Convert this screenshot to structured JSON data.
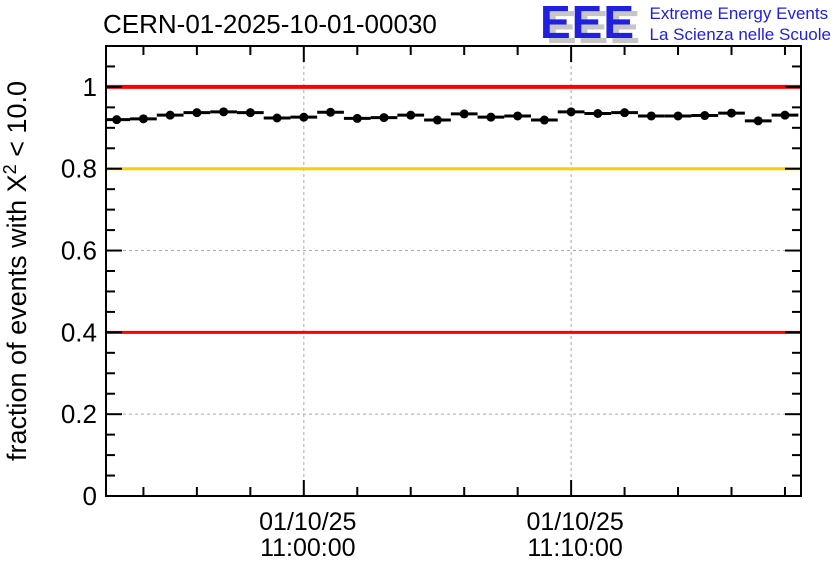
{
  "title": "CERN-01-2025-10-01-00030",
  "logo": {
    "acronym": "EEE",
    "line1": "Extreme Energy Events",
    "line2": "La Scienza nelle Scuole",
    "text_color": "#2020e0",
    "shadow_color": "#c6c6c6"
  },
  "chart_data": {
    "type": "scatter",
    "title": "CERN-01-2025-10-01-00030",
    "xlabel": "",
    "ylabel_parts": {
      "pre": "fraction of events with X",
      "sup": "2",
      "post": " < 10.0"
    },
    "ylim": [
      0,
      1.1
    ],
    "ytick_values": [
      0,
      0.2,
      0.4,
      0.6,
      0.8,
      1
    ],
    "ytick_labels": [
      "0",
      "0.2",
      "0.4",
      "0.6",
      "0.8",
      "1"
    ],
    "y_minor_step": 0.05,
    "xlim_minutes": [
      652.6,
      678.6
    ],
    "x_major_ticks": [
      {
        "minute": 660,
        "label_lines": [
          "01/10/25",
          "11:00:00"
        ]
      },
      {
        "minute": 670,
        "label_lines": [
          "01/10/25",
          "11:10:00"
        ]
      }
    ],
    "x_minor_step_min": 2,
    "grid": {
      "dashed": true,
      "color": "#aaaaaa"
    },
    "reference_lines": [
      {
        "y": 1.0,
        "color": "#ff0000",
        "width": 4
      },
      {
        "y": 0.8,
        "color": "#ffcc00",
        "width": 3
      },
      {
        "y": 0.4,
        "color": "#ff0000",
        "width": 3
      }
    ],
    "marker": "filled-circle",
    "bin_width_min": 1,
    "points": [
      {
        "time": "10:53",
        "value": 0.92
      },
      {
        "time": "10:54",
        "value": 0.922
      },
      {
        "time": "10:55",
        "value": 0.931
      },
      {
        "time": "10:56",
        "value": 0.937
      },
      {
        "time": "10:57",
        "value": 0.939
      },
      {
        "time": "10:58",
        "value": 0.937
      },
      {
        "time": "10:59",
        "value": 0.924
      },
      {
        "time": "11:00",
        "value": 0.926
      },
      {
        "time": "11:01",
        "value": 0.938
      },
      {
        "time": "11:02",
        "value": 0.923
      },
      {
        "time": "11:03",
        "value": 0.925
      },
      {
        "time": "11:04",
        "value": 0.931
      },
      {
        "time": "11:05",
        "value": 0.919
      },
      {
        "time": "11:06",
        "value": 0.934
      },
      {
        "time": "11:07",
        "value": 0.926
      },
      {
        "time": "11:08",
        "value": 0.929
      },
      {
        "time": "11:09",
        "value": 0.919
      },
      {
        "time": "11:10",
        "value": 0.939
      },
      {
        "time": "11:11",
        "value": 0.935
      },
      {
        "time": "11:12",
        "value": 0.937
      },
      {
        "time": "11:13",
        "value": 0.929
      },
      {
        "time": "11:14",
        "value": 0.929
      },
      {
        "time": "11:15",
        "value": 0.93
      },
      {
        "time": "11:16",
        "value": 0.936
      },
      {
        "time": "11:17",
        "value": 0.917
      },
      {
        "time": "11:18",
        "value": 0.931
      }
    ]
  }
}
